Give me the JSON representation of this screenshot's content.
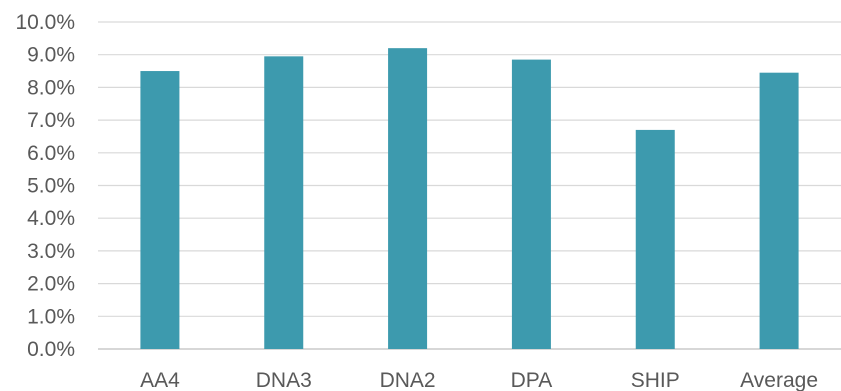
{
  "chart_data": {
    "type": "bar",
    "categories": [
      "AA4",
      "DNA3",
      "DNA2",
      "DPA",
      "SHIP",
      "Average"
    ],
    "values": [
      8.5,
      8.95,
      9.2,
      8.85,
      6.7,
      8.45
    ],
    "ylim": [
      0,
      10
    ],
    "y_ticks": [
      0,
      1,
      2,
      3,
      4,
      5,
      6,
      7,
      8,
      9,
      10
    ],
    "y_tick_labels": [
      "0.0%",
      "1.0%",
      "2.0%",
      "3.0%",
      "4.0%",
      "5.0%",
      "6.0%",
      "7.0%",
      "8.0%",
      "9.0%",
      "10.0%"
    ],
    "grid": true,
    "legend": "none",
    "colors": {
      "bar": "#3d9aae",
      "grid": "#d9d9d9",
      "axis": "#bfbfbf",
      "text": "#595959"
    }
  }
}
